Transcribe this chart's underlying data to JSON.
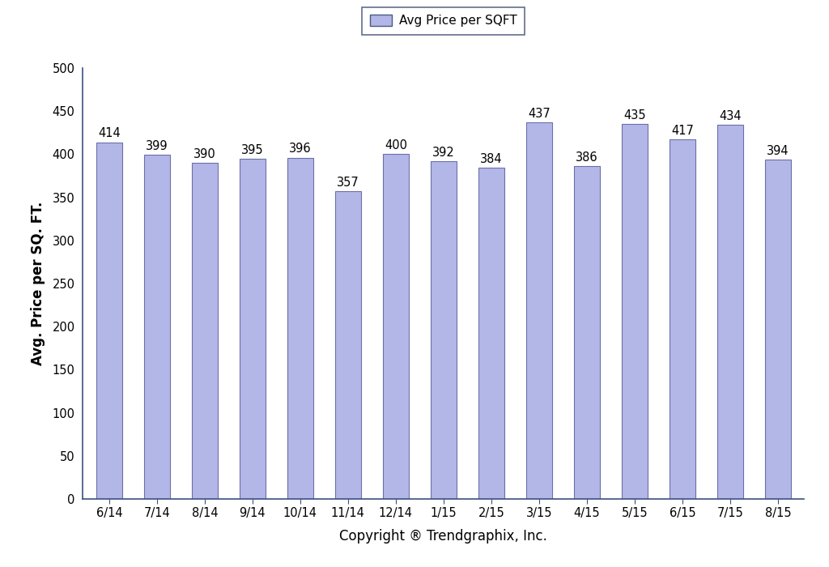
{
  "categories": [
    "6/14",
    "7/14",
    "8/14",
    "9/14",
    "10/14",
    "11/14",
    "12/14",
    "1/15",
    "2/15",
    "3/15",
    "4/15",
    "5/15",
    "6/15",
    "7/15",
    "8/15"
  ],
  "values": [
    414,
    399,
    390,
    395,
    396,
    357,
    400,
    392,
    384,
    437,
    386,
    435,
    417,
    434,
    394
  ],
  "bar_color": "#b3b7e8",
  "bar_edge_color": "#6b6fa8",
  "spine_color": "#3a5080",
  "ylabel": "Avg. Price per SQ. FT.",
  "xlabel": "Copyright ® Trendgraphix, Inc.",
  "ylim": [
    0,
    500
  ],
  "yticks": [
    0,
    50,
    100,
    150,
    200,
    250,
    300,
    350,
    400,
    450,
    500
  ],
  "legend_label": "Avg Price per SQFT",
  "legend_face_color": "#b3b7e8",
  "legend_edge_color": "#4a5a80",
  "legend_border_color": "#3a4a70",
  "value_label_fontsize": 10.5,
  "axis_label_fontsize": 12,
  "tick_label_fontsize": 10.5,
  "legend_fontsize": 11,
  "background_color": "#ffffff",
  "bar_width": 0.55
}
